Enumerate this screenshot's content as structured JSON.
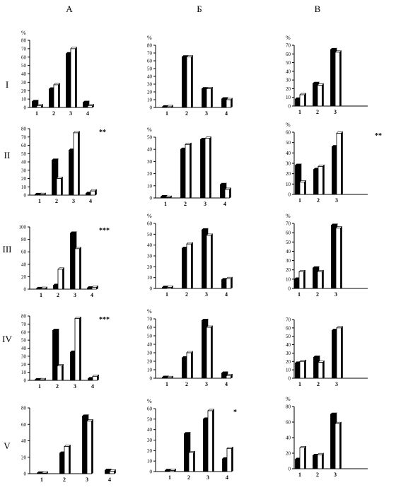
{
  "column_labels": [
    "А",
    "Б",
    "В"
  ],
  "row_labels": [
    "I",
    "II",
    "III",
    "IV",
    "V"
  ],
  "series_colors": {
    "filled": "#000000",
    "open": "#ffffff"
  },
  "chart_data": [
    {
      "type": "bar",
      "row": "I",
      "column": "А",
      "ylabel": "%",
      "ylim": [
        0,
        80
      ],
      "yticks": [
        0,
        10,
        20,
        30,
        40,
        50,
        60,
        70,
        80
      ],
      "categories": [
        "1",
        "2",
        "3",
        "4"
      ],
      "series": [
        {
          "values": [
            7,
            22,
            64,
            6
          ]
        },
        {
          "values": [
            2,
            27,
            70,
            2
          ]
        }
      ],
      "significance": ""
    },
    {
      "type": "bar",
      "row": "I",
      "column": "Б",
      "ylabel": "%",
      "ylim": [
        0,
        80
      ],
      "yticks": [
        0,
        10,
        20,
        30,
        40,
        50,
        60,
        70,
        80
      ],
      "categories": [
        "1",
        "2",
        "3",
        "4"
      ],
      "series": [
        {
          "values": [
            0,
            65,
            24,
            11
          ]
        },
        {
          "values": [
            1,
            65,
            24,
            10
          ]
        }
      ],
      "significance": ""
    },
    {
      "type": "bar",
      "row": "I",
      "column": "В",
      "ylabel": "%",
      "ylim": [
        0,
        70
      ],
      "yticks": [
        0,
        10,
        20,
        30,
        40,
        50,
        60,
        70
      ],
      "categories": [
        "1",
        "2",
        "3"
      ],
      "series": [
        {
          "values": [
            8,
            26,
            65
          ]
        },
        {
          "values": [
            13,
            24,
            62
          ]
        }
      ],
      "significance": ""
    },
    {
      "type": "bar",
      "row": "II",
      "column": "А",
      "ylabel": "",
      "ylim": [
        0,
        80
      ],
      "yticks": [
        0,
        10,
        20,
        30,
        40,
        50,
        60,
        70,
        80
      ],
      "categories": [
        "1",
        "2",
        "3",
        "4"
      ],
      "series": [
        {
          "values": [
            0,
            42,
            54,
            2
          ]
        },
        {
          "values": [
            0,
            20,
            75,
            5
          ]
        }
      ],
      "significance": "**"
    },
    {
      "type": "bar",
      "row": "II",
      "column": "Б",
      "ylabel": "%",
      "ylim": [
        0,
        50
      ],
      "yticks": [
        0,
        10,
        20,
        30,
        40,
        50
      ],
      "categories": [
        "1",
        "2",
        "3",
        "4"
      ],
      "series": [
        {
          "values": [
            1,
            40,
            48,
            11
          ]
        },
        {
          "values": [
            0,
            44,
            49,
            7
          ]
        }
      ],
      "significance": ""
    },
    {
      "type": "bar",
      "row": "II",
      "column": "В",
      "ylabel": "%",
      "ylim": [
        0,
        60
      ],
      "yticks": [
        0,
        10,
        20,
        30,
        40,
        50,
        60
      ],
      "categories": [
        "1",
        "2",
        "3"
      ],
      "series": [
        {
          "values": [
            28,
            24,
            46
          ]
        },
        {
          "values": [
            12,
            27,
            59
          ]
        }
      ],
      "significance": "**"
    },
    {
      "type": "bar",
      "row": "III",
      "column": "А",
      "ylabel": "",
      "ylim": [
        0,
        100
      ],
      "yticks": [
        0,
        20,
        40,
        60,
        80,
        100
      ],
      "categories": [
        "1",
        "2",
        "3",
        "4"
      ],
      "series": [
        {
          "values": [
            0,
            6,
            90,
            2
          ]
        },
        {
          "values": [
            1,
            32,
            65,
            3
          ]
        }
      ],
      "significance": "***"
    },
    {
      "type": "bar",
      "row": "III",
      "column": "Б",
      "ylabel": "%",
      "ylim": [
        0,
        60
      ],
      "yticks": [
        0,
        10,
        20,
        30,
        40,
        50,
        60
      ],
      "categories": [
        "1",
        "2",
        "3",
        "4"
      ],
      "series": [
        {
          "values": [
            1,
            37,
            54,
            8
          ]
        },
        {
          "values": [
            1,
            41,
            49,
            9
          ]
        }
      ],
      "significance": ""
    },
    {
      "type": "bar",
      "row": "III",
      "column": "В",
      "ylabel": "%",
      "ylim": [
        0,
        70
      ],
      "yticks": [
        0,
        10,
        20,
        30,
        40,
        50,
        60,
        70
      ],
      "categories": [
        "1",
        "2",
        "3"
      ],
      "series": [
        {
          "values": [
            10,
            22,
            68
          ]
        },
        {
          "values": [
            18,
            18,
            65
          ]
        }
      ],
      "significance": ""
    },
    {
      "type": "bar",
      "row": "IV",
      "column": "А",
      "ylabel": "",
      "ylim": [
        0,
        80
      ],
      "yticks": [
        0,
        10,
        20,
        30,
        40,
        50,
        60,
        70,
        80
      ],
      "categories": [
        "1",
        "2",
        "3",
        "4"
      ],
      "series": [
        {
          "values": [
            0,
            62,
            35,
            2
          ]
        },
        {
          "values": [
            0,
            18,
            77,
            5
          ]
        }
      ],
      "significance": "***"
    },
    {
      "type": "bar",
      "row": "IV",
      "column": "Б",
      "ylabel": "%",
      "ylim": [
        0,
        70
      ],
      "yticks": [
        0,
        10,
        20,
        30,
        40,
        50,
        60,
        70
      ],
      "categories": [
        "1",
        "2",
        "3",
        "4"
      ],
      "series": [
        {
          "values": [
            1,
            24,
            68,
            6
          ]
        },
        {
          "values": [
            0,
            30,
            60,
            3
          ]
        }
      ],
      "significance": ""
    },
    {
      "type": "bar",
      "row": "IV",
      "column": "В",
      "ylabel": "",
      "ylim": [
        0,
        70
      ],
      "yticks": [
        0,
        10,
        20,
        30,
        40,
        50,
        60,
        70
      ],
      "categories": [
        "1",
        "2",
        "3"
      ],
      "series": [
        {
          "values": [
            18,
            25,
            57
          ]
        },
        {
          "values": [
            20,
            19,
            60
          ]
        }
      ],
      "significance": ""
    },
    {
      "type": "bar",
      "row": "V",
      "column": "А",
      "ylabel": "",
      "ylim": [
        0,
        80
      ],
      "yticks": [
        0,
        20,
        40,
        60,
        80
      ],
      "categories": [
        "1",
        "2",
        "3",
        "4"
      ],
      "series": [
        {
          "values": [
            0,
            25,
            70,
            4
          ]
        },
        {
          "values": [
            0,
            33,
            64,
            3
          ]
        }
      ],
      "significance": ""
    },
    {
      "type": "bar",
      "row": "V",
      "column": "Б",
      "ylabel": "%",
      "ylim": [
        0,
        60
      ],
      "yticks": [
        0,
        10,
        20,
        30,
        40,
        50,
        60
      ],
      "categories": [
        "1",
        "2",
        "3",
        "4"
      ],
      "series": [
        {
          "values": [
            1,
            36,
            50,
            12
          ]
        },
        {
          "values": [
            1,
            18,
            58,
            22
          ]
        }
      ],
      "significance": "*"
    },
    {
      "type": "bar",
      "row": "V",
      "column": "В",
      "ylabel": "%",
      "ylim": [
        0,
        80
      ],
      "yticks": [
        0,
        20,
        40,
        60,
        80
      ],
      "categories": [
        "1",
        "2",
        "3"
      ],
      "series": [
        {
          "values": [
            12,
            17,
            70
          ]
        },
        {
          "values": [
            27,
            18,
            58
          ]
        }
      ],
      "significance": ""
    }
  ]
}
